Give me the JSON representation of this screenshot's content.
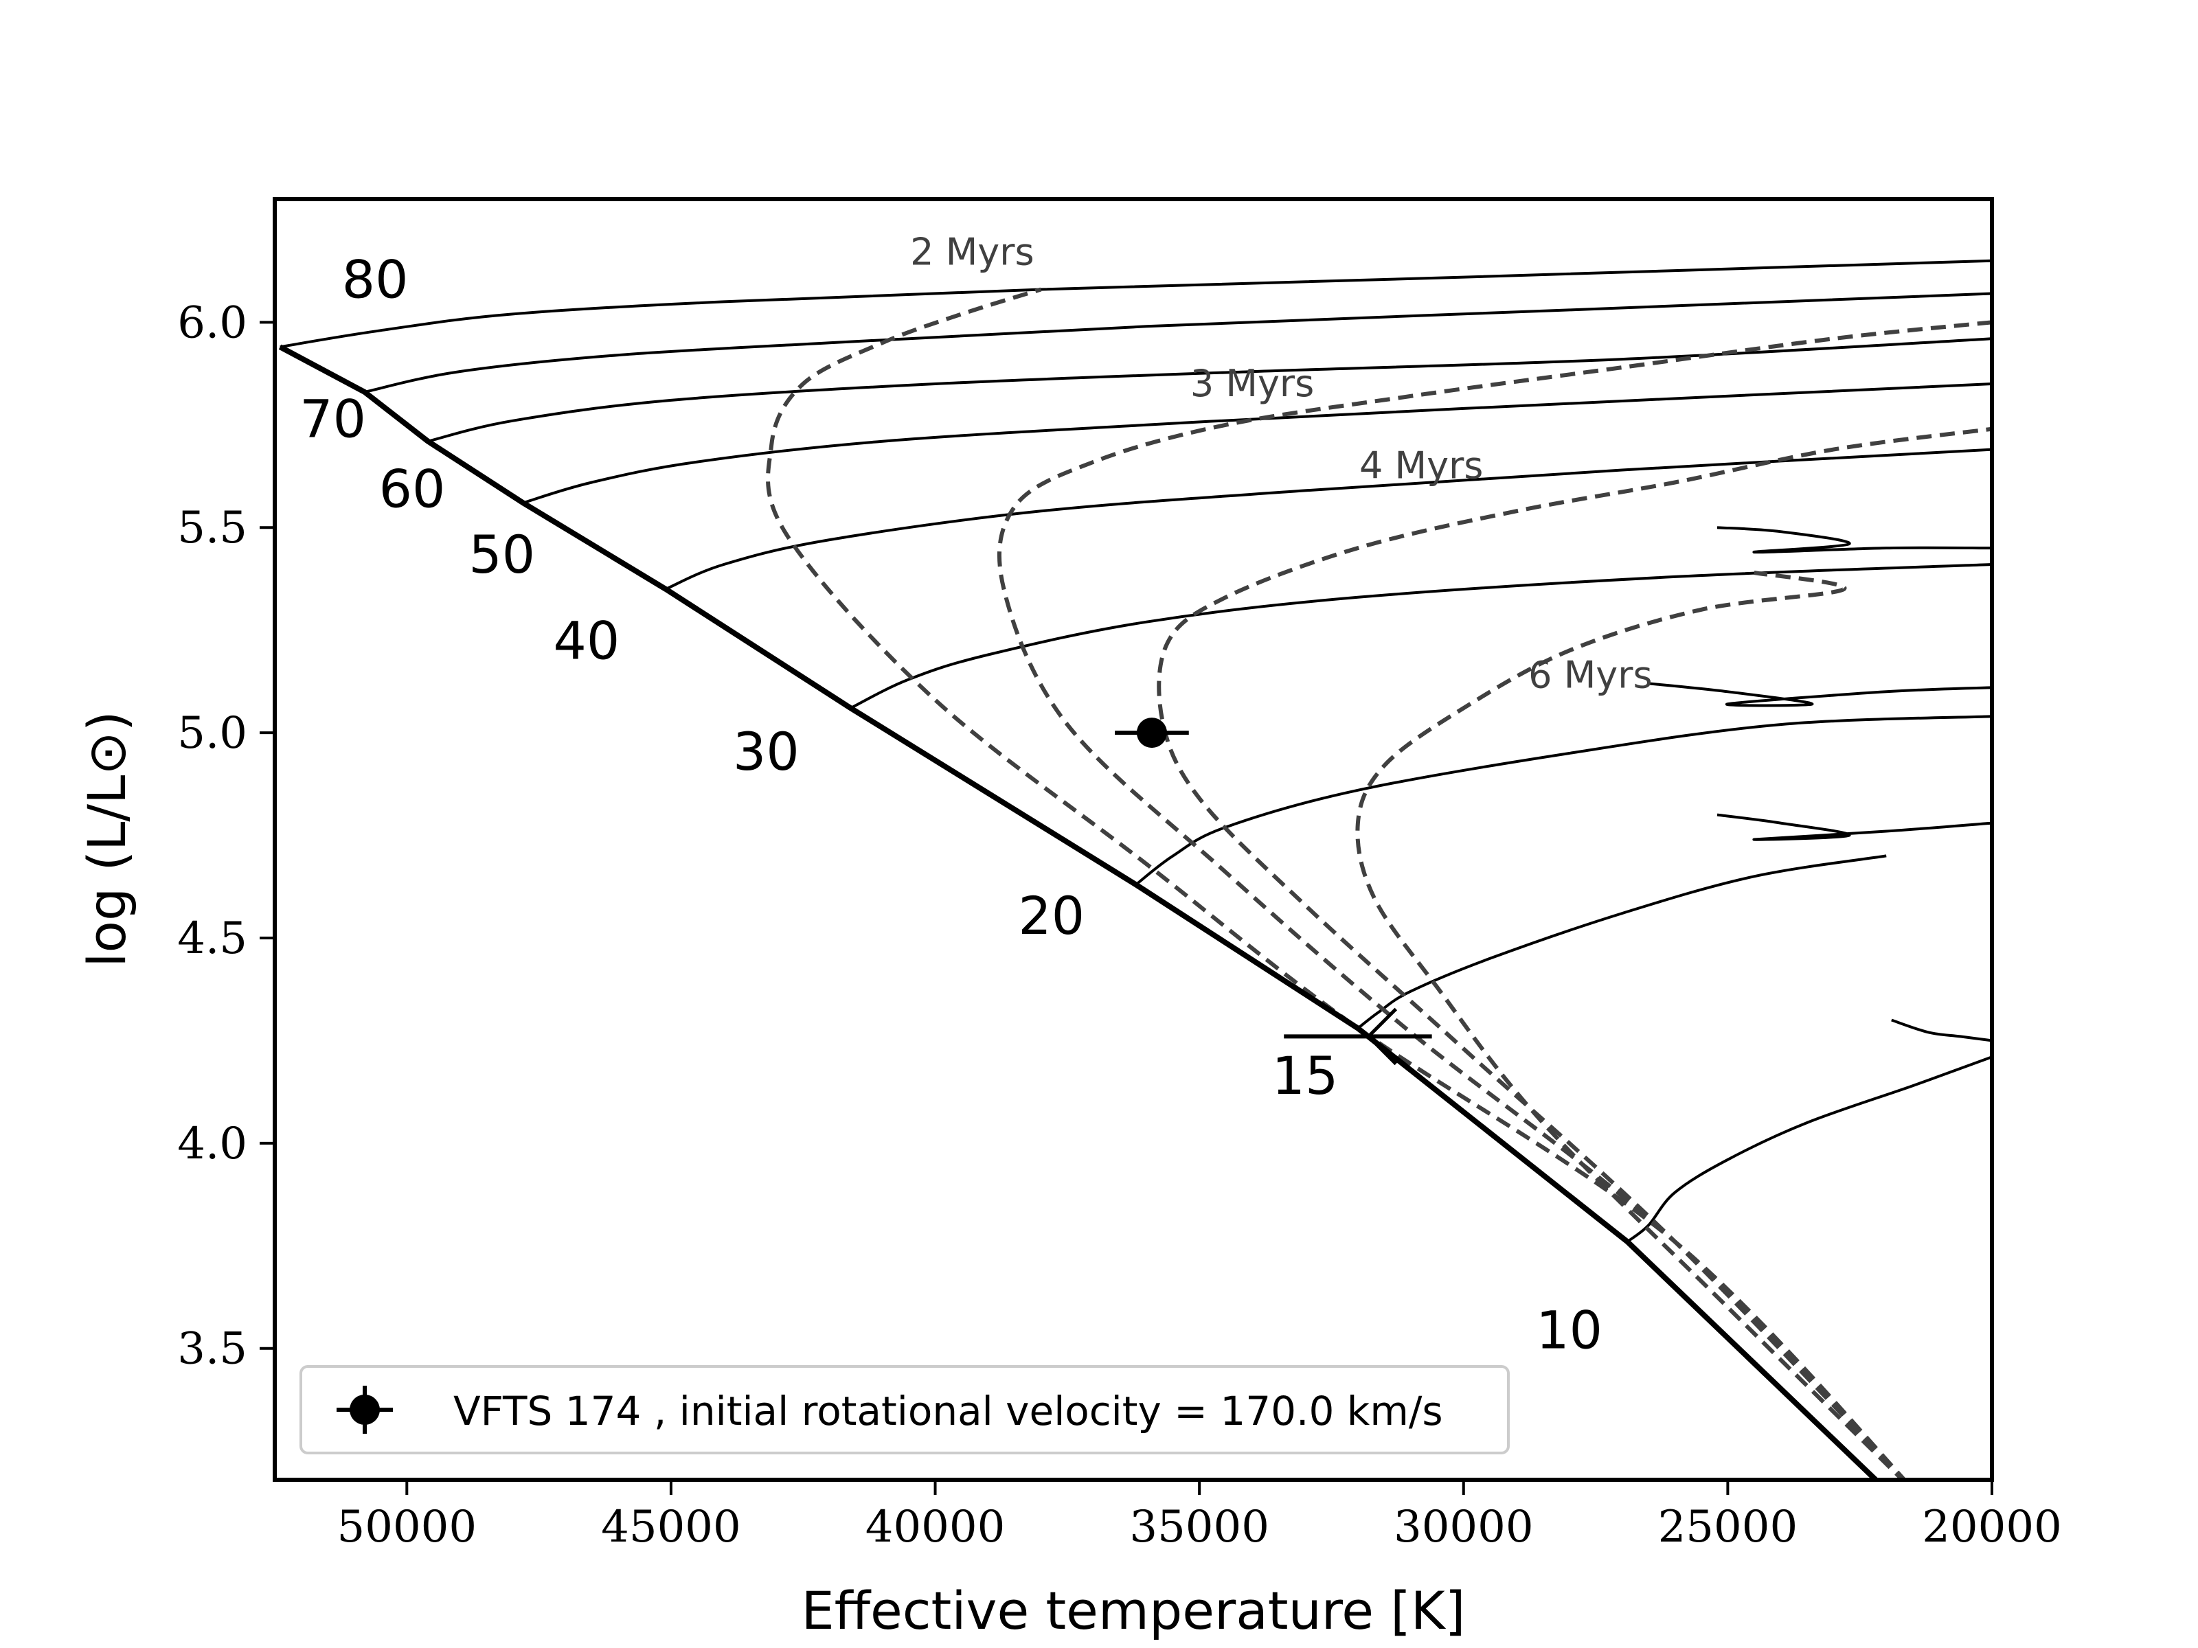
{
  "chart_data": {
    "type": "scatter",
    "xlabel": "Effective temperature [K]",
    "ylabel": "log (L/L⊙)",
    "xlim": [
      52500,
      20000
    ],
    "ylim": [
      3.18,
      6.3
    ],
    "x_inverted": true,
    "xticks": [
      50000,
      45000,
      40000,
      35000,
      30000,
      25000,
      20000
    ],
    "xtick_labels": [
      "50000",
      "45000",
      "40000",
      "35000",
      "30000",
      "25000",
      "20000"
    ],
    "yticks": [
      3.5,
      4.0,
      4.5,
      5.0,
      5.5,
      6.0
    ],
    "ytick_labels": [
      "3.5",
      "4.0",
      "4.5",
      "5.0",
      "5.5",
      "6.0"
    ],
    "grid": false,
    "legend_position": "lower-left",
    "legend": [
      "VFTS 174 , initial rotational velocity = 170.0 km/s"
    ],
    "zams": [
      [
        52400,
        5.94
      ],
      [
        50800,
        5.83
      ],
      [
        49600,
        5.71
      ],
      [
        47800,
        5.56
      ],
      [
        45100,
        5.35
      ],
      [
        41600,
        5.06
      ],
      [
        36200,
        4.63
      ],
      [
        32000,
        4.28
      ],
      [
        26900,
        3.76
      ],
      [
        22200,
        3.18
      ]
    ],
    "tracks": [
      {
        "label": "80",
        "points": [
          [
            52400,
            5.94
          ],
          [
            50500,
            5.98
          ],
          [
            48000,
            6.02
          ],
          [
            44000,
            6.05
          ],
          [
            38000,
            6.08
          ],
          [
            30000,
            6.11
          ],
          [
            20000,
            6.15
          ]
        ]
      },
      {
        "label": "70",
        "points": [
          [
            50800,
            5.83
          ],
          [
            49000,
            5.88
          ],
          [
            46000,
            5.92
          ],
          [
            42000,
            5.95
          ],
          [
            36000,
            5.99
          ],
          [
            28000,
            6.03
          ],
          [
            20000,
            6.07
          ]
        ]
      },
      {
        "label": "60",
        "points": [
          [
            49600,
            5.71
          ],
          [
            48000,
            5.76
          ],
          [
            45000,
            5.81
          ],
          [
            40000,
            5.85
          ],
          [
            34000,
            5.88
          ],
          [
            27000,
            5.91
          ],
          [
            20000,
            5.96
          ]
        ]
      },
      {
        "label": "50",
        "points": [
          [
            47800,
            5.56
          ],
          [
            46500,
            5.61
          ],
          [
            44500,
            5.66
          ],
          [
            41000,
            5.71
          ],
          [
            36000,
            5.75
          ],
          [
            30000,
            5.79
          ],
          [
            20000,
            5.85
          ]
        ]
      },
      {
        "label": "40",
        "points": [
          [
            45100,
            5.35
          ],
          [
            44000,
            5.41
          ],
          [
            42000,
            5.47
          ],
          [
            38000,
            5.54
          ],
          [
            33000,
            5.59
          ],
          [
            27000,
            5.64
          ],
          [
            20000,
            5.69
          ]
        ]
      },
      {
        "label": "30",
        "points": [
          [
            41600,
            5.06
          ],
          [
            40500,
            5.13
          ],
          [
            39000,
            5.19
          ],
          [
            36000,
            5.27
          ],
          [
            32000,
            5.33
          ],
          [
            26000,
            5.38
          ],
          [
            20000,
            5.41
          ]
        ]
      },
      {
        "label": "20",
        "points": [
          [
            36200,
            4.63
          ],
          [
            35500,
            4.7
          ],
          [
            34500,
            4.77
          ],
          [
            32000,
            4.86
          ],
          [
            28000,
            4.95
          ],
          [
            24000,
            5.02
          ],
          [
            20000,
            5.04
          ]
        ]
      },
      {
        "label": "15",
        "points": [
          [
            32000,
            4.28
          ],
          [
            31600,
            4.32
          ],
          [
            31000,
            4.37
          ],
          [
            29500,
            4.45
          ],
          [
            27000,
            4.56
          ],
          [
            24500,
            4.65
          ],
          [
            22000,
            4.7
          ]
        ]
      },
      {
        "label": "10",
        "points": [
          [
            26900,
            3.76
          ],
          [
            26500,
            3.8
          ],
          [
            26000,
            3.88
          ],
          [
            25000,
            3.96
          ],
          [
            23500,
            4.05
          ],
          [
            21500,
            4.14
          ],
          [
            20000,
            4.21
          ]
        ]
      }
    ],
    "blue_loops": [
      [
        [
          25200,
          5.5
        ],
        [
          24000,
          5.49
        ],
        [
          22700,
          5.46
        ],
        [
          24500,
          5.44
        ],
        [
          22000,
          5.45
        ],
        [
          20000,
          5.45
        ]
      ],
      [
        [
          26500,
          5.12
        ],
        [
          25000,
          5.1
        ],
        [
          23400,
          5.07
        ],
        [
          25000,
          5.07
        ],
        [
          22000,
          5.1
        ],
        [
          20000,
          5.11
        ]
      ],
      [
        [
          25200,
          4.8
        ],
        [
          24000,
          4.78
        ],
        [
          22700,
          4.75
        ],
        [
          24500,
          4.74
        ],
        [
          22000,
          4.76
        ],
        [
          20000,
          4.78
        ]
      ],
      [
        [
          21900,
          4.3
        ],
        [
          21200,
          4.27
        ],
        [
          20600,
          4.26
        ],
        [
          20000,
          4.25
        ]
      ]
    ],
    "isochrones": [
      {
        "label": "2 Myrs",
        "label_at": [
          39300,
          6.14
        ],
        "points": [
          [
            21300,
            3.13
          ],
          [
            26000,
            3.76
          ],
          [
            32000,
            4.28
          ],
          [
            36000,
            4.68
          ],
          [
            40000,
            5.08
          ],
          [
            42800,
            5.48
          ],
          [
            43100,
            5.7
          ],
          [
            42500,
            5.85
          ],
          [
            41000,
            5.95
          ],
          [
            39500,
            6.02
          ],
          [
            38000,
            6.08
          ]
        ]
      },
      {
        "label": "3 Myrs",
        "label_at": [
          34000,
          5.82
        ],
        "points": [
          [
            21300,
            3.13
          ],
          [
            26000,
            3.76
          ],
          [
            31000,
            4.27
          ],
          [
            34500,
            4.66
          ],
          [
            37500,
            5.02
          ],
          [
            38700,
            5.35
          ],
          [
            38500,
            5.55
          ],
          [
            37000,
            5.66
          ],
          [
            34500,
            5.75
          ],
          [
            31000,
            5.82
          ],
          [
            27000,
            5.89
          ],
          [
            23000,
            5.96
          ],
          [
            20000,
            6.0
          ]
        ]
      },
      {
        "label": "4 Myrs",
        "label_at": [
          30800,
          5.62
        ],
        "points": [
          [
            21300,
            3.13
          ],
          [
            26000,
            3.76
          ],
          [
            30000,
            4.23
          ],
          [
            33000,
            4.58
          ],
          [
            35000,
            4.84
          ],
          [
            35700,
            5.03
          ],
          [
            35600,
            5.22
          ],
          [
            34500,
            5.33
          ],
          [
            32000,
            5.45
          ],
          [
            29000,
            5.54
          ],
          [
            26000,
            5.61
          ],
          [
            23000,
            5.69
          ],
          [
            20000,
            5.74
          ]
        ]
      },
      {
        "label": "6 Myrs",
        "label_at": [
          27600,
          5.11
        ],
        "points": [
          [
            21300,
            3.13
          ],
          [
            25000,
            3.6
          ],
          [
            28500,
            4.05
          ],
          [
            30500,
            4.38
          ],
          [
            31700,
            4.6
          ],
          [
            32000,
            4.78
          ],
          [
            31500,
            4.92
          ],
          [
            30000,
            5.06
          ],
          [
            28000,
            5.2
          ],
          [
            25500,
            5.3
          ],
          [
            22800,
            5.35
          ],
          [
            24500,
            5.39
          ]
        ]
      }
    ],
    "zams_labels": [
      {
        "label": "80",
        "at": [
          50600,
          6.06
        ]
      },
      {
        "label": "70",
        "at": [
          51400,
          5.72
        ]
      },
      {
        "label": "60",
        "at": [
          49900,
          5.55
        ]
      },
      {
        "label": "50",
        "at": [
          48200,
          5.39
        ]
      },
      {
        "label": "40",
        "at": [
          46600,
          5.18
        ]
      },
      {
        "label": "30",
        "at": [
          43200,
          4.91
        ]
      },
      {
        "label": "20",
        "at": [
          37800,
          4.51
        ]
      },
      {
        "label": "15",
        "at": [
          33000,
          4.12
        ]
      },
      {
        "label": "10",
        "at": [
          28000,
          3.5
        ]
      }
    ],
    "star": {
      "name": "VFTS 174",
      "teff": 35900,
      "teff_err": 700,
      "logL": 5.0,
      "logL_err": 0.02
    },
    "reference_marker": {
      "teff": 32000,
      "teff_err": 1400,
      "logL": 4.26
    }
  }
}
